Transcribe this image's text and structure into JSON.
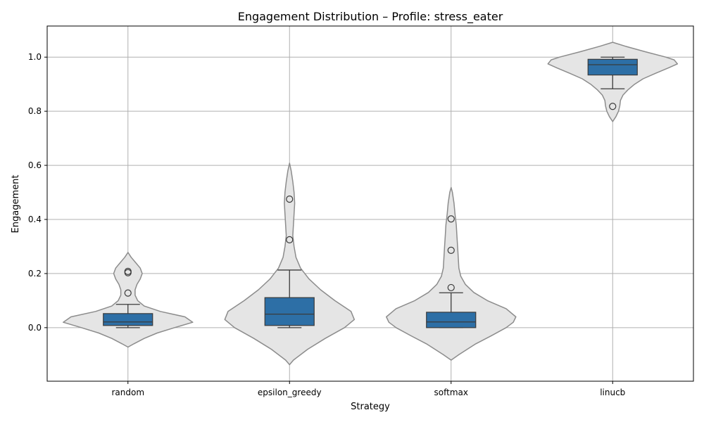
{
  "chart_data": {
    "type": "violin",
    "title": "Engagement Distribution – Profile: stress_eater",
    "xlabel": "Strategy",
    "ylabel": "Engagement",
    "categories": [
      "random",
      "epsilon_greedy",
      "softmax",
      "linucb"
    ],
    "ylim": [
      -0.198,
      1.115
    ],
    "yticks": [
      0.0,
      0.2,
      0.4,
      0.6,
      0.8,
      1.0
    ],
    "ytick_labels": [
      "0.0",
      "0.2",
      "0.4",
      "0.6",
      "0.8",
      "1.0"
    ],
    "grid": true,
    "colors": {
      "violin_fill": "#e5e5e5",
      "violin_edge": "#8c8c8c",
      "box_fill": "#2d6fa6",
      "line": "#3a3a3a",
      "grid": "#b0b0b0"
    },
    "boxes": [
      {
        "category": "random",
        "whisker_low": 0.0,
        "q1": 0.008,
        "median": 0.021,
        "q3": 0.052,
        "whisker_high": 0.086,
        "outliers": [
          0.128,
          0.203,
          0.208
        ]
      },
      {
        "category": "epsilon_greedy",
        "whisker_low": 0.0,
        "q1": 0.008,
        "median": 0.05,
        "q3": 0.111,
        "whisker_high": 0.213,
        "outliers": [
          0.325,
          0.475
        ]
      },
      {
        "category": "softmax",
        "whisker_low": 0.0,
        "q1": 0.0,
        "median": 0.021,
        "q3": 0.057,
        "whisker_high": 0.129,
        "outliers": [
          0.148,
          0.286,
          0.402
        ]
      },
      {
        "category": "linucb",
        "whisker_low": 0.883,
        "q1": 0.934,
        "median": 0.972,
        "q3": 0.992,
        "whisker_high": 1.0,
        "outliers": [
          0.818
        ]
      }
    ],
    "violins": [
      {
        "category": "random",
        "density": [
          [
            -0.072,
            0.0
          ],
          [
            -0.06,
            0.09
          ],
          [
            -0.04,
            0.25
          ],
          [
            -0.02,
            0.45
          ],
          [
            0.0,
            0.72
          ],
          [
            0.02,
            1.0
          ],
          [
            0.04,
            0.88
          ],
          [
            0.06,
            0.5
          ],
          [
            0.08,
            0.25
          ],
          [
            0.1,
            0.15
          ],
          [
            0.12,
            0.11
          ],
          [
            0.14,
            0.11
          ],
          [
            0.16,
            0.14
          ],
          [
            0.18,
            0.19
          ],
          [
            0.2,
            0.22
          ],
          [
            0.22,
            0.19
          ],
          [
            0.24,
            0.12
          ],
          [
            0.26,
            0.05
          ],
          [
            0.278,
            0.0
          ]
        ]
      },
      {
        "category": "epsilon_greedy",
        "density": [
          [
            -0.137,
            0.0
          ],
          [
            -0.12,
            0.06
          ],
          [
            -0.08,
            0.28
          ],
          [
            -0.04,
            0.55
          ],
          [
            0.0,
            0.85
          ],
          [
            0.03,
            1.0
          ],
          [
            0.06,
            0.95
          ],
          [
            0.1,
            0.7
          ],
          [
            0.14,
            0.48
          ],
          [
            0.18,
            0.3
          ],
          [
            0.22,
            0.17
          ],
          [
            0.26,
            0.1
          ],
          [
            0.3,
            0.07
          ],
          [
            0.34,
            0.05
          ],
          [
            0.38,
            0.06
          ],
          [
            0.42,
            0.07
          ],
          [
            0.46,
            0.08
          ],
          [
            0.5,
            0.07
          ],
          [
            0.54,
            0.05
          ],
          [
            0.58,
            0.025
          ],
          [
            0.608,
            0.0
          ]
        ]
      },
      {
        "category": "softmax",
        "density": [
          [
            -0.12,
            0.0
          ],
          [
            -0.1,
            0.12
          ],
          [
            -0.06,
            0.38
          ],
          [
            -0.03,
            0.62
          ],
          [
            0.0,
            0.85
          ],
          [
            0.02,
            0.96
          ],
          [
            0.04,
            1.0
          ],
          [
            0.07,
            0.85
          ],
          [
            0.1,
            0.56
          ],
          [
            0.13,
            0.35
          ],
          [
            0.16,
            0.22
          ],
          [
            0.19,
            0.15
          ],
          [
            0.22,
            0.12
          ],
          [
            0.26,
            0.11
          ],
          [
            0.3,
            0.1
          ],
          [
            0.34,
            0.09
          ],
          [
            0.38,
            0.08
          ],
          [
            0.42,
            0.06
          ],
          [
            0.46,
            0.045
          ],
          [
            0.5,
            0.02
          ],
          [
            0.518,
            0.0
          ]
        ]
      },
      {
        "category": "linucb",
        "density": [
          [
            0.762,
            0.0
          ],
          [
            0.78,
            0.05
          ],
          [
            0.8,
            0.09
          ],
          [
            0.82,
            0.11
          ],
          [
            0.84,
            0.12
          ],
          [
            0.86,
            0.16
          ],
          [
            0.88,
            0.24
          ],
          [
            0.9,
            0.34
          ],
          [
            0.92,
            0.47
          ],
          [
            0.94,
            0.66
          ],
          [
            0.96,
            0.86
          ],
          [
            0.975,
            1.0
          ],
          [
            0.99,
            0.95
          ],
          [
            1.0,
            0.82
          ],
          [
            1.02,
            0.5
          ],
          [
            1.04,
            0.2
          ],
          [
            1.055,
            0.0
          ]
        ]
      }
    ]
  }
}
